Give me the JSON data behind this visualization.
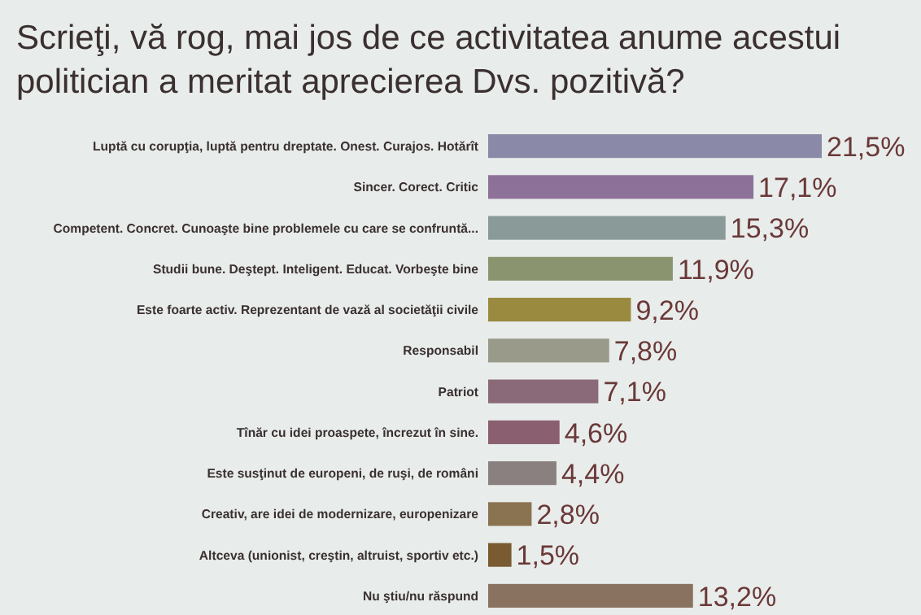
{
  "chart_data": {
    "type": "bar",
    "orientation": "horizontal",
    "relative": false,
    "title": "Scrieţi, vă rog, mai jos de ce activitatea anume acestui politician a meritat aprecierea Dvs. pozitivă?",
    "categories": [
      "Luptă cu corupţia, luptă pentru dreptate. Onest. Curajos. Hotărît",
      "Sincer. Corect. Critic",
      "Competent. Concret. Cunoaşte bine problemele cu care se confruntă...",
      "Studii bune. Deştept. Inteligent. Educat. Vorbeşte bine",
      "Este foarte activ. Reprezentant de vază al societăţii civile",
      "Responsabil",
      "Patriot",
      "Tînăr cu idei proaspete, încrezut în sine.",
      "Este susţinut de europeni, de ruşi, de români",
      "Creativ, are idei de modernizare, europenizare",
      "Altceva (unionist, creştin, altruist, sportiv etc.)",
      "Nu ştiu/nu răspund"
    ],
    "values": [
      21.5,
      17.1,
      15.3,
      11.9,
      9.2,
      7.8,
      7.1,
      4.6,
      4.4,
      2.8,
      1.5,
      13.2
    ],
    "value_labels": [
      "21,5%",
      "17,1%",
      "15,3%",
      "11,9%",
      "9,2%",
      "7,8%",
      "7,1%",
      "4,6%",
      "4,4%",
      "2,8%",
      "1,5%",
      "13,2%"
    ],
    "colors": [
      "#8a8aa8",
      "#8e7199",
      "#8a9a98",
      "#8a9570",
      "#9a8a40",
      "#9a9a8a",
      "#8a6a78",
      "#8a6070",
      "#8a8080",
      "#8a7350",
      "#7a5a30",
      "#8a7260"
    ],
    "xlim": [
      0,
      21.5
    ],
    "tick_labels": "y"
  }
}
